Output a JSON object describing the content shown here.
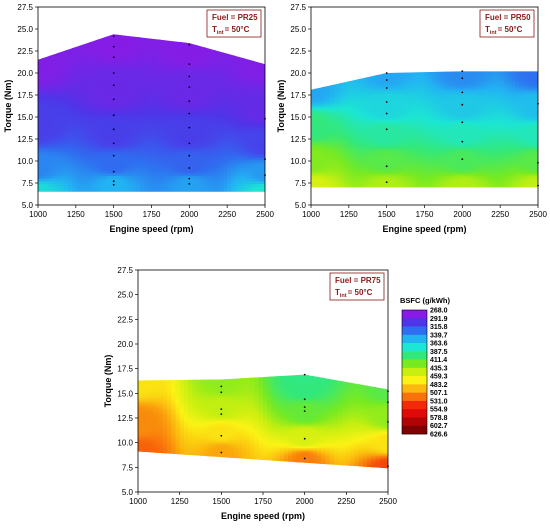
{
  "chart_data": [
    {
      "type": "heatmap",
      "xlabel": "Engine speed (rpm)",
      "ylabel": "Torque (Nm)",
      "xlim": [
        1000,
        2500
      ],
      "ylim": [
        5.0,
        27.5
      ],
      "xticks": [
        "1000",
        "1250",
        "1500",
        "1750",
        "2000",
        "2250",
        "2500"
      ],
      "yticks": [
        "5.0",
        "7.5",
        "10.0",
        "12.5",
        "15.0",
        "17.5",
        "20.0",
        "22.5",
        "25.0",
        "27.5"
      ],
      "annotation": {
        "fuel": "Fuel = PR25",
        "tint_main": "T",
        "tint_sub": "int",
        "tint_value": "= 50°C"
      },
      "boundary_top": [
        [
          1000,
          21.5
        ],
        [
          1500,
          24.4
        ],
        [
          2000,
          23.4
        ],
        [
          2500,
          21.0
        ]
      ],
      "boundary_bottom": [
        [
          1000,
          6.5
        ],
        [
          2500,
          6.5
        ]
      ],
      "points": [
        [
          1500,
          24.2
        ],
        [
          1500,
          23.0
        ],
        [
          1500,
          21.8
        ],
        [
          1500,
          20.0
        ],
        [
          1500,
          18.6
        ],
        [
          1500,
          17.0
        ],
        [
          1500,
          15.2
        ],
        [
          1500,
          13.6
        ],
        [
          1500,
          12.0
        ],
        [
          1500,
          10.6
        ],
        [
          1500,
          8.8
        ],
        [
          1500,
          7.7
        ],
        [
          1500,
          7.3
        ],
        [
          2000,
          23.2
        ],
        [
          2000,
          21.0
        ],
        [
          2000,
          19.6
        ],
        [
          2000,
          18.4
        ],
        [
          2000,
          16.8
        ],
        [
          2000,
          15.4
        ],
        [
          2000,
          13.8
        ],
        [
          2000,
          12.0
        ],
        [
          2000,
          10.6
        ],
        [
          2000,
          9.2
        ],
        [
          2000,
          8.0
        ],
        [
          2000,
          7.4
        ],
        [
          2500,
          8.4
        ],
        [
          2500,
          10.2
        ],
        [
          2500,
          14.8
        ]
      ],
      "bsfc_points": [
        {
          "x": 1000,
          "y": 6.5,
          "v": 365
        },
        {
          "x": 1000,
          "y": 9,
          "v": 328
        },
        {
          "x": 1000,
          "y": 14,
          "v": 298
        },
        {
          "x": 1000,
          "y": 21.5,
          "v": 272
        },
        {
          "x": 1500,
          "y": 7.3,
          "v": 345
        },
        {
          "x": 1500,
          "y": 9.5,
          "v": 318
        },
        {
          "x": 1500,
          "y": 13,
          "v": 298
        },
        {
          "x": 1500,
          "y": 18,
          "v": 282
        },
        {
          "x": 1500,
          "y": 24,
          "v": 270
        },
        {
          "x": 2000,
          "y": 7.3,
          "v": 338
        },
        {
          "x": 2000,
          "y": 9.5,
          "v": 314
        },
        {
          "x": 2000,
          "y": 13,
          "v": 298
        },
        {
          "x": 2000,
          "y": 18,
          "v": 282
        },
        {
          "x": 2000,
          "y": 23,
          "v": 270
        },
        {
          "x": 2500,
          "y": 6.5,
          "v": 372
        },
        {
          "x": 2500,
          "y": 8.5,
          "v": 335
        },
        {
          "x": 2500,
          "y": 12,
          "v": 300
        },
        {
          "x": 2500,
          "y": 16,
          "v": 284
        },
        {
          "x": 2500,
          "y": 21,
          "v": 272
        }
      ]
    },
    {
      "type": "heatmap",
      "xlabel": "Engine speed (rpm)",
      "ylabel": "Torque (Nm)",
      "xlim": [
        1000,
        2500
      ],
      "ylim": [
        5.0,
        27.5
      ],
      "xticks": [
        "1000",
        "1250",
        "1500",
        "1750",
        "2000",
        "2250",
        "2500"
      ],
      "yticks": [
        "5.0",
        "7.5",
        "10.0",
        "12.5",
        "15.0",
        "17.5",
        "20.0",
        "22.5",
        "25.0",
        "27.5"
      ],
      "annotation": {
        "fuel": "Fuel = PR50",
        "tint_main": "T",
        "tint_sub": "int",
        "tint_value": "= 50°C"
      },
      "boundary_top": [
        [
          1000,
          18.1
        ],
        [
          1500,
          20.0
        ],
        [
          2000,
          20.2
        ],
        [
          2500,
          20.2
        ]
      ],
      "boundary_bottom": [
        [
          1000,
          7.0
        ],
        [
          2500,
          7.0
        ]
      ],
      "points": [
        [
          1500,
          20.0
        ],
        [
          1500,
          19.2
        ],
        [
          1500,
          18.3
        ],
        [
          1500,
          16.7
        ],
        [
          1500,
          15.4
        ],
        [
          1500,
          13.6
        ],
        [
          1500,
          9.4
        ],
        [
          1500,
          7.6
        ],
        [
          2000,
          20.2
        ],
        [
          2000,
          19.4
        ],
        [
          2000,
          17.8
        ],
        [
          2000,
          16.4
        ],
        [
          2000,
          14.4
        ],
        [
          2000,
          12.2
        ],
        [
          2000,
          10.2
        ],
        [
          2500,
          16.5
        ],
        [
          2500,
          9.8
        ],
        [
          2500,
          7.2
        ]
      ],
      "bsfc_points": [
        {
          "x": 1000,
          "y": 7,
          "v": 455
        },
        {
          "x": 1000,
          "y": 10,
          "v": 425
        },
        {
          "x": 1000,
          "y": 14,
          "v": 395
        },
        {
          "x": 1000,
          "y": 18,
          "v": 340
        },
        {
          "x": 1500,
          "y": 7,
          "v": 440
        },
        {
          "x": 1500,
          "y": 10,
          "v": 410
        },
        {
          "x": 1500,
          "y": 13,
          "v": 385
        },
        {
          "x": 1500,
          "y": 16,
          "v": 362
        },
        {
          "x": 1500,
          "y": 20,
          "v": 340
        },
        {
          "x": 2000,
          "y": 7,
          "v": 440
        },
        {
          "x": 2000,
          "y": 10,
          "v": 405
        },
        {
          "x": 2000,
          "y": 13,
          "v": 378
        },
        {
          "x": 2000,
          "y": 16,
          "v": 355
        },
        {
          "x": 2000,
          "y": 20,
          "v": 330
        },
        {
          "x": 2500,
          "y": 7,
          "v": 445
        },
        {
          "x": 2500,
          "y": 10,
          "v": 410
        },
        {
          "x": 2500,
          "y": 13,
          "v": 378
        },
        {
          "x": 2500,
          "y": 16,
          "v": 350
        },
        {
          "x": 2500,
          "y": 20,
          "v": 320
        }
      ]
    },
    {
      "type": "heatmap",
      "xlabel": "Engine speed (rpm)",
      "ylabel": "Torque (Nm)",
      "xlim": [
        1000,
        2500
      ],
      "ylim": [
        5.0,
        27.5
      ],
      "xticks": [
        "1000",
        "1250",
        "1500",
        "1750",
        "2000",
        "2250",
        "2500"
      ],
      "yticks": [
        "5.0",
        "7.5",
        "10.0",
        "12.5",
        "15.0",
        "17.5",
        "20.0",
        "22.5",
        "25.0",
        "27.5"
      ],
      "annotation": {
        "fuel": "Fuel = PR75",
        "tint_main": "T",
        "tint_sub": "int",
        "tint_value": "= 50°C"
      },
      "boundary_top": [
        [
          1000,
          16.3
        ],
        [
          1500,
          16.4
        ],
        [
          2000,
          16.9
        ],
        [
          2500,
          15.4
        ]
      ],
      "boundary_bottom": [
        [
          1000,
          9.1
        ],
        [
          2500,
          7.4
        ]
      ],
      "points": [
        [
          1500,
          15.7
        ],
        [
          1500,
          15.1
        ],
        [
          1500,
          13.4
        ],
        [
          1500,
          12.9
        ],
        [
          1500,
          10.7
        ],
        [
          1500,
          9.0
        ],
        [
          2000,
          16.9
        ],
        [
          2000,
          14.4
        ],
        [
          2000,
          13.6
        ],
        [
          2000,
          13.2
        ],
        [
          2000,
          10.4
        ],
        [
          2000,
          8.4
        ],
        [
          2500,
          15.2
        ],
        [
          2500,
          14.1
        ],
        [
          2500,
          12.1
        ],
        [
          2500,
          7.6
        ]
      ],
      "bsfc_points": [
        {
          "x": 1000,
          "y": 9,
          "v": 530
        },
        {
          "x": 1000,
          "y": 12,
          "v": 515
        },
        {
          "x": 1000,
          "y": 16.3,
          "v": 480
        },
        {
          "x": 1500,
          "y": 9,
          "v": 505
        },
        {
          "x": 1500,
          "y": 11,
          "v": 480
        },
        {
          "x": 1500,
          "y": 13.5,
          "v": 445
        },
        {
          "x": 1500,
          "y": 16,
          "v": 430
        },
        {
          "x": 2000,
          "y": 8.2,
          "v": 520
        },
        {
          "x": 2000,
          "y": 10.5,
          "v": 455
        },
        {
          "x": 2000,
          "y": 13,
          "v": 415
        },
        {
          "x": 2000,
          "y": 15.5,
          "v": 395
        },
        {
          "x": 2000,
          "y": 17,
          "v": 392
        },
        {
          "x": 2500,
          "y": 7.4,
          "v": 540
        },
        {
          "x": 2500,
          "y": 10,
          "v": 480
        },
        {
          "x": 2500,
          "y": 12.5,
          "v": 430
        },
        {
          "x": 2500,
          "y": 15.4,
          "v": 410
        }
      ]
    }
  ],
  "colorbar": {
    "title": "BSFC (g/kWh)",
    "ticks": [
      "268.0",
      "291.9",
      "315.8",
      "339.7",
      "363.6",
      "387.5",
      "411.4",
      "435.3",
      "459.3",
      "483.2",
      "507.1",
      "531.0",
      "554.9",
      "578.8",
      "602.7",
      "626.6"
    ],
    "colors": [
      "#8a1be6",
      "#4e35e8",
      "#2f6ef0",
      "#22b4f2",
      "#1ce6d4",
      "#33e87a",
      "#77ea22",
      "#c8ef10",
      "#fbf315",
      "#fbb80e",
      "#f8720b",
      "#f32a08",
      "#e00909",
      "#b10505",
      "#7e0202"
    ]
  }
}
